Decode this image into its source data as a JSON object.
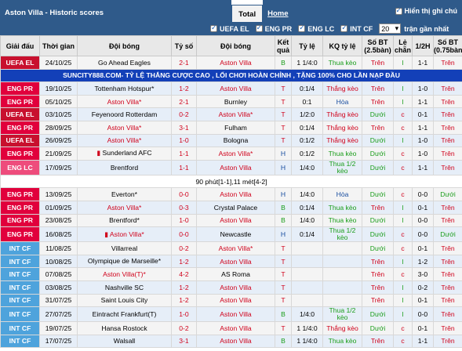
{
  "header": {
    "title": "Aston Villa - Historic scores",
    "tab_total": "Total",
    "tab_home": "Home",
    "show_all_label": "Hiển thị ghi chú"
  },
  "filters": {
    "items": [
      {
        "label": "UEFA EL"
      },
      {
        "label": "ENG PR"
      },
      {
        "label": "ENG LC"
      },
      {
        "label": "INT CF"
      }
    ],
    "count": "20",
    "count_suffix": "trận gần nhất"
  },
  "columns": {
    "league": "Giải đấu",
    "time": "Thời gian",
    "home": "Đội bóng",
    "score": "Tỷ số",
    "away": "Đội bóng",
    "result": "Kết quả",
    "odds": "Tỷ lệ",
    "odds_result": "KQ tỷ lệ",
    "ou": "Số BT (2.5bàn)",
    "oe": "Lẻ chẵn",
    "h1": "1/2H",
    "ou75": "Số BT (0.75bàn)"
  },
  "league_colors": {
    "UEFA EL": "#c8102e",
    "ENG PR": "#e1003c",
    "ENG LC": "#ee4c7c",
    "INT CF": "#4ea3dc"
  },
  "banner_text": "SUNCITY888.COM- TỶ LỆ THẮNG CƯỢC CAO , LỐI CHƠI HOÀN CHỈNH , TẶNG 100% CHO LẦN NẠP ĐẦU",
  "rows": [
    {
      "league": "UEFA EL",
      "date": "24/10/25",
      "home": "Go Ahead Eagles",
      "score": "2-1",
      "away": "Aston Villa",
      "res": "B",
      "odds": "1 1/4:0",
      "kq": "Thua kèo",
      "ou": "Trên",
      "oe": "l",
      "h1": "1-1",
      "ou75": "Trên",
      "home_av": false,
      "away_av": true
    },
    {
      "type": "banner"
    },
    {
      "league": "ENG PR",
      "date": "19/10/25",
      "home": "Tottenham Hotspur",
      "score": "1-2",
      "away": "Aston Villa",
      "res": "T",
      "odds": "0:1/4",
      "kq": "Thắng kèo",
      "ou": "Trên",
      "oe": "l",
      "h1": "1-0",
      "ou75": "Trên",
      "home_av": false,
      "away_av": true,
      "home_star": true
    },
    {
      "league": "ENG PR",
      "date": "05/10/25",
      "home": "Aston Villa",
      "score": "2-1",
      "away": "Burnley",
      "res": "T",
      "odds": "0:1",
      "kq": "Hòa",
      "ou": "Trên",
      "oe": "l",
      "h1": "1-1",
      "ou75": "Trên",
      "home_av": true,
      "away_av": false,
      "home_star": true
    },
    {
      "league": "UEFA EL",
      "date": "03/10/25",
      "home": "Feyenoord Rotterdam",
      "score": "0-2",
      "away": "Aston Villa",
      "res": "T",
      "odds": "1/2:0",
      "kq": "Thắng kèo",
      "ou": "Dưới",
      "oe": "c",
      "h1": "0-1",
      "ou75": "Trên",
      "home_av": false,
      "away_av": true,
      "away_star": true
    },
    {
      "league": "ENG PR",
      "date": "28/09/25",
      "home": "Aston Villa",
      "score": "3-1",
      "away": "Fulham",
      "res": "T",
      "odds": "0:1/4",
      "kq": "Thắng kèo",
      "ou": "Trên",
      "oe": "c",
      "h1": "1-1",
      "ou75": "Trên",
      "home_av": true,
      "away_av": false,
      "home_star": true
    },
    {
      "league": "UEFA EL",
      "date": "26/09/25",
      "home": "Aston Villa",
      "score": "1-0",
      "away": "Bologna",
      "res": "T",
      "odds": "0:1/2",
      "kq": "Thắng kèo",
      "ou": "Dưới",
      "oe": "l",
      "h1": "1-0",
      "ou75": "Trên",
      "home_av": true,
      "away_av": false,
      "home_star": true
    },
    {
      "league": "ENG PR",
      "date": "21/09/25",
      "home": "Sunderland AFC",
      "score": "1-1",
      "away": "Aston Villa",
      "res": "H",
      "odds": "0:1/2",
      "kq": "Thua kèo",
      "ou": "Dưới",
      "oe": "c",
      "h1": "1-0",
      "ou75": "Trên",
      "home_av": false,
      "away_av": true,
      "away_star": true,
      "home_icon": true
    },
    {
      "league": "ENG LC",
      "date": "17/09/25",
      "home": "Brentford",
      "score": "1-1",
      "away": "Aston Villa",
      "res": "H",
      "odds": "1/4:0",
      "kq": "Thua 1/2 kèo",
      "ou": "Dưới",
      "oe": "c",
      "h1": "1-1",
      "ou75": "Trên",
      "home_av": false,
      "away_av": true,
      "kq_multi": true
    },
    {
      "type": "note",
      "text": "90 phút[1-1],11 mét[4-2]"
    },
    {
      "league": "ENG PR",
      "date": "13/09/25",
      "home": "Everton",
      "score": "0-0",
      "away": "Aston Villa",
      "res": "H",
      "odds": "1/4:0",
      "kq": "Hòa",
      "ou": "Dưới",
      "oe": "c",
      "h1": "0-0",
      "ou75": "Dưới",
      "home_av": false,
      "away_av": true,
      "home_star": true
    },
    {
      "league": "ENG PR",
      "date": "01/09/25",
      "home": "Aston Villa",
      "score": "0-3",
      "away": "Crystal Palace",
      "res": "B",
      "odds": "0:1/4",
      "kq": "Thua kèo",
      "ou": "Trên",
      "oe": "l",
      "h1": "0-1",
      "ou75": "Trên",
      "home_av": true,
      "away_av": false,
      "home_star": true
    },
    {
      "league": "ENG PR",
      "date": "23/08/25",
      "home": "Brentford",
      "score": "1-0",
      "away": "Aston Villa",
      "res": "B",
      "odds": "1/4:0",
      "kq": "Thua kèo",
      "ou": "Dưới",
      "oe": "l",
      "h1": "0-0",
      "ou75": "Trên",
      "home_av": false,
      "away_av": true,
      "home_star": true
    },
    {
      "league": "ENG PR",
      "date": "16/08/25",
      "home": "Aston Villa",
      "score": "0-0",
      "away": "Newcastle",
      "res": "H",
      "odds": "0:1/4",
      "kq": "Thua 1/2 kèo",
      "ou": "Dưới",
      "oe": "c",
      "h1": "0-0",
      "ou75": "Dưới",
      "home_av": true,
      "away_av": false,
      "home_star": true,
      "home_icon": true,
      "kq_multi": true
    },
    {
      "league": "INT CF",
      "date": "11/08/25",
      "home": "Villarreal",
      "score": "0-2",
      "away": "Aston Villa",
      "res": "T",
      "odds": "",
      "kq": "",
      "ou": "Dưới",
      "oe": "c",
      "h1": "0-1",
      "ou75": "Trên",
      "home_av": false,
      "away_av": true,
      "away_star": true
    },
    {
      "league": "INT CF",
      "date": "10/08/25",
      "home": "Olympique de Marseille",
      "score": "1-2",
      "away": "Aston Villa",
      "res": "T",
      "odds": "",
      "kq": "",
      "ou": "Trên",
      "oe": "l",
      "h1": "1-2",
      "ou75": "Trên",
      "home_av": false,
      "away_av": true,
      "home_star": true,
      "home_multi": true
    },
    {
      "league": "INT CF",
      "date": "07/08/25",
      "home": "Aston Villa(T)",
      "score": "4-2",
      "away": "AS Roma",
      "res": "T",
      "odds": "",
      "kq": "",
      "ou": "Trên",
      "oe": "c",
      "h1": "3-0",
      "ou75": "Trên",
      "home_av": true,
      "away_av": false,
      "home_star": true
    },
    {
      "league": "INT CF",
      "date": "03/08/25",
      "home": "Nashville SC",
      "score": "1-2",
      "away": "Aston Villa",
      "res": "T",
      "odds": "",
      "kq": "",
      "ou": "Trên",
      "oe": "l",
      "h1": "0-2",
      "ou75": "Trên",
      "home_av": false,
      "away_av": true
    },
    {
      "league": "INT CF",
      "date": "31/07/25",
      "home": "Saint Louis City",
      "score": "1-2",
      "away": "Aston Villa",
      "res": "T",
      "odds": "",
      "kq": "",
      "ou": "Trên",
      "oe": "l",
      "h1": "0-1",
      "ou75": "Trên",
      "home_av": false,
      "away_av": true
    },
    {
      "league": "INT CF",
      "date": "27/07/25",
      "home": "Eintracht Frankfurt(T)",
      "score": "1-0",
      "away": "Aston Villa",
      "res": "B",
      "odds": "1/4:0",
      "kq": "Thua 1/2 kèo",
      "ou": "Dưới",
      "oe": "l",
      "h1": "0-0",
      "ou75": "Trên",
      "home_av": false,
      "away_av": true,
      "kq_multi": true
    },
    {
      "league": "INT CF",
      "date": "19/07/25",
      "home": "Hansa Rostock",
      "score": "0-2",
      "away": "Aston Villa",
      "res": "T",
      "odds": "1 1/4:0",
      "kq": "Thắng kèo",
      "ou": "Dưới",
      "oe": "c",
      "h1": "0-1",
      "ou75": "Trên",
      "home_av": false,
      "away_av": true
    },
    {
      "league": "INT CF",
      "date": "17/07/25",
      "home": "Walsall",
      "score": "3-1",
      "away": "Aston Villa",
      "res": "B",
      "odds": "1 1/4:0",
      "kq": "Thua kèo",
      "ou": "Trên",
      "oe": "c",
      "h1": "1-1",
      "ou75": "Trên",
      "home_av": false,
      "away_av": true
    }
  ]
}
